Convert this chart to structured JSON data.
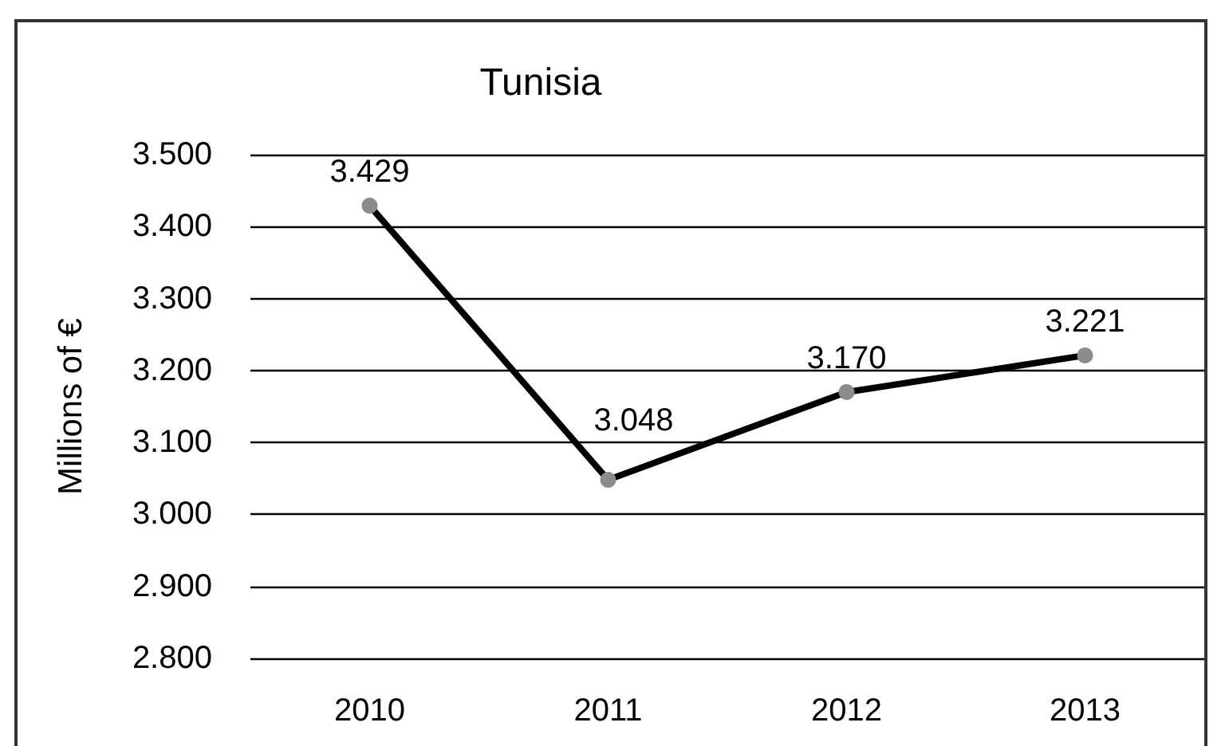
{
  "chart_data": {
    "type": "line",
    "title": "Tunisia",
    "ylabel": "Millions of €",
    "categories": [
      "2010",
      "2011",
      "2012",
      "2013"
    ],
    "series": [
      {
        "color": "#000000",
        "values": [
          3.429,
          3.048,
          3.17,
          3.221
        ],
        "value_labels": [
          "3.429",
          "3.048",
          "3.170",
          "3.221"
        ]
      }
    ],
    "ylim": [
      2.8,
      3.5
    ],
    "yticks": [
      {
        "value": 2.8,
        "label": "2.800"
      },
      {
        "value": 2.9,
        "label": "2.900"
      },
      {
        "value": 3.0,
        "label": "3.000"
      },
      {
        "value": 3.1,
        "label": "3.100"
      },
      {
        "value": 3.2,
        "label": "3.200"
      },
      {
        "value": 3.3,
        "label": "3.300"
      },
      {
        "value": 3.4,
        "label": "3.400"
      },
      {
        "value": 3.5,
        "label": "3.500"
      }
    ],
    "grid": "y",
    "marker": "circle",
    "line_style": "solid"
  }
}
